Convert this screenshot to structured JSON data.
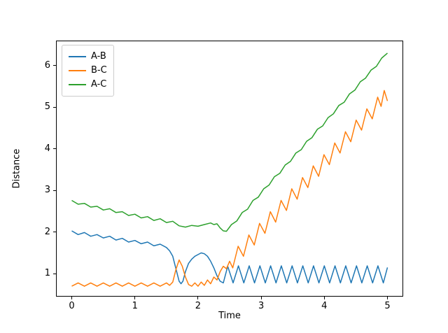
{
  "figure": {
    "background": "#ffffff"
  },
  "chart_data": {
    "type": "line",
    "title": "",
    "xlabel": "Time",
    "ylabel": "Distance",
    "xlim": [
      -0.25,
      5.25
    ],
    "ylim": [
      0.45,
      6.6
    ],
    "xticks": [
      0,
      1,
      2,
      3,
      4,
      5
    ],
    "yticks": [
      1,
      2,
      3,
      4,
      5,
      6
    ],
    "grid": false,
    "legend": {
      "position": "upper-left",
      "entries": [
        "A-B",
        "B-C",
        "A-C"
      ]
    },
    "series": [
      {
        "name": "A-B",
        "color": "#1f77b4",
        "points": [
          [
            0.0,
            2.03
          ],
          [
            0.1,
            1.94
          ],
          [
            0.2,
            1.99
          ],
          [
            0.3,
            1.9
          ],
          [
            0.4,
            1.94
          ],
          [
            0.5,
            1.86
          ],
          [
            0.6,
            1.9
          ],
          [
            0.7,
            1.81
          ],
          [
            0.8,
            1.85
          ],
          [
            0.9,
            1.76
          ],
          [
            1.0,
            1.8
          ],
          [
            1.1,
            1.72
          ],
          [
            1.2,
            1.76
          ],
          [
            1.3,
            1.67
          ],
          [
            1.4,
            1.71
          ],
          [
            1.5,
            1.63
          ],
          [
            1.55,
            1.55
          ],
          [
            1.6,
            1.42
          ],
          [
            1.65,
            1.12
          ],
          [
            1.7,
            0.82
          ],
          [
            1.73,
            0.76
          ],
          [
            1.76,
            0.82
          ],
          [
            1.8,
            1.05
          ],
          [
            1.85,
            1.25
          ],
          [
            1.9,
            1.35
          ],
          [
            1.95,
            1.42
          ],
          [
            2.0,
            1.46
          ],
          [
            2.05,
            1.5
          ],
          [
            2.1,
            1.48
          ],
          [
            2.15,
            1.42
          ],
          [
            2.2,
            1.3
          ],
          [
            2.25,
            1.14
          ],
          [
            2.3,
            0.95
          ],
          [
            2.35,
            0.82
          ],
          [
            2.4,
            0.78
          ],
          [
            2.47,
            1.18
          ],
          [
            2.555,
            0.78
          ],
          [
            2.64,
            1.19
          ],
          [
            2.725,
            0.78
          ],
          [
            2.81,
            1.19
          ],
          [
            2.895,
            0.78
          ],
          [
            2.98,
            1.19
          ],
          [
            3.065,
            0.78
          ],
          [
            3.15,
            1.19
          ],
          [
            3.235,
            0.78
          ],
          [
            3.32,
            1.19
          ],
          [
            3.405,
            0.78
          ],
          [
            3.49,
            1.19
          ],
          [
            3.575,
            0.78
          ],
          [
            3.66,
            1.19
          ],
          [
            3.745,
            0.78
          ],
          [
            3.83,
            1.19
          ],
          [
            3.915,
            0.78
          ],
          [
            4.0,
            1.19
          ],
          [
            4.085,
            0.78
          ],
          [
            4.17,
            1.19
          ],
          [
            4.255,
            0.78
          ],
          [
            4.34,
            1.19
          ],
          [
            4.425,
            0.78
          ],
          [
            4.51,
            1.19
          ],
          [
            4.595,
            0.78
          ],
          [
            4.68,
            1.19
          ],
          [
            4.765,
            0.78
          ],
          [
            4.85,
            1.19
          ],
          [
            4.935,
            0.78
          ],
          [
            5.0,
            1.15
          ]
        ]
      },
      {
        "name": "B-C",
        "color": "#ff7f0e",
        "points": [
          [
            0.0,
            0.7
          ],
          [
            0.1,
            0.78
          ],
          [
            0.2,
            0.7
          ],
          [
            0.3,
            0.78
          ],
          [
            0.4,
            0.7
          ],
          [
            0.5,
            0.78
          ],
          [
            0.6,
            0.7
          ],
          [
            0.7,
            0.78
          ],
          [
            0.8,
            0.7
          ],
          [
            0.9,
            0.78
          ],
          [
            1.0,
            0.7
          ],
          [
            1.1,
            0.78
          ],
          [
            1.2,
            0.7
          ],
          [
            1.3,
            0.78
          ],
          [
            1.4,
            0.7
          ],
          [
            1.5,
            0.78
          ],
          [
            1.55,
            0.72
          ],
          [
            1.6,
            0.8
          ],
          [
            1.65,
            1.1
          ],
          [
            1.7,
            1.33
          ],
          [
            1.75,
            1.18
          ],
          [
            1.8,
            0.92
          ],
          [
            1.85,
            0.74
          ],
          [
            1.9,
            0.7
          ],
          [
            1.95,
            0.78
          ],
          [
            2.0,
            0.7
          ],
          [
            2.05,
            0.8
          ],
          [
            2.1,
            0.72
          ],
          [
            2.15,
            0.85
          ],
          [
            2.2,
            0.76
          ],
          [
            2.25,
            0.92
          ],
          [
            2.3,
            0.85
          ],
          [
            2.35,
            1.05
          ],
          [
            2.4,
            1.18
          ],
          [
            2.45,
            1.12
          ],
          [
            2.5,
            1.3
          ],
          [
            2.55,
            1.14
          ],
          [
            2.635,
            1.66
          ],
          [
            2.72,
            1.42
          ],
          [
            2.805,
            1.93
          ],
          [
            2.89,
            1.69
          ],
          [
            2.975,
            2.21
          ],
          [
            3.06,
            1.97
          ],
          [
            3.145,
            2.49
          ],
          [
            3.23,
            2.24
          ],
          [
            3.315,
            2.76
          ],
          [
            3.4,
            2.52
          ],
          [
            3.485,
            3.04
          ],
          [
            3.57,
            2.79
          ],
          [
            3.655,
            3.31
          ],
          [
            3.74,
            3.07
          ],
          [
            3.825,
            3.59
          ],
          [
            3.91,
            3.34
          ],
          [
            3.995,
            3.86
          ],
          [
            4.08,
            3.62
          ],
          [
            4.165,
            4.14
          ],
          [
            4.25,
            3.9
          ],
          [
            4.335,
            4.41
          ],
          [
            4.42,
            4.17
          ],
          [
            4.505,
            4.69
          ],
          [
            4.59,
            4.45
          ],
          [
            4.675,
            4.96
          ],
          [
            4.76,
            4.72
          ],
          [
            4.845,
            5.24
          ],
          [
            4.9,
            5.02
          ],
          [
            4.95,
            5.4
          ],
          [
            5.0,
            5.15
          ]
        ]
      },
      {
        "name": "A-C",
        "color": "#2ca02c",
        "points": [
          [
            0.0,
            2.76
          ],
          [
            0.1,
            2.67
          ],
          [
            0.2,
            2.69
          ],
          [
            0.3,
            2.6
          ],
          [
            0.4,
            2.62
          ],
          [
            0.5,
            2.53
          ],
          [
            0.6,
            2.56
          ],
          [
            0.7,
            2.47
          ],
          [
            0.8,
            2.49
          ],
          [
            0.9,
            2.4
          ],
          [
            1.0,
            2.43
          ],
          [
            1.1,
            2.34
          ],
          [
            1.2,
            2.37
          ],
          [
            1.3,
            2.28
          ],
          [
            1.4,
            2.32
          ],
          [
            1.5,
            2.23
          ],
          [
            1.6,
            2.26
          ],
          [
            1.7,
            2.15
          ],
          [
            1.8,
            2.12
          ],
          [
            1.9,
            2.16
          ],
          [
            2.0,
            2.14
          ],
          [
            2.1,
            2.18
          ],
          [
            2.2,
            2.22
          ],
          [
            2.25,
            2.18
          ],
          [
            2.3,
            2.2
          ],
          [
            2.35,
            2.1
          ],
          [
            2.4,
            2.03
          ],
          [
            2.45,
            2.02
          ],
          [
            2.53,
            2.18
          ],
          [
            2.615,
            2.27
          ],
          [
            2.7,
            2.47
          ],
          [
            2.785,
            2.55
          ],
          [
            2.87,
            2.76
          ],
          [
            2.955,
            2.84
          ],
          [
            3.04,
            3.04
          ],
          [
            3.125,
            3.13
          ],
          [
            3.21,
            3.33
          ],
          [
            3.295,
            3.41
          ],
          [
            3.38,
            3.61
          ],
          [
            3.465,
            3.7
          ],
          [
            3.55,
            3.9
          ],
          [
            3.635,
            3.98
          ],
          [
            3.72,
            4.18
          ],
          [
            3.805,
            4.27
          ],
          [
            3.89,
            4.47
          ],
          [
            3.975,
            4.55
          ],
          [
            4.06,
            4.75
          ],
          [
            4.145,
            4.84
          ],
          [
            4.23,
            5.04
          ],
          [
            4.315,
            5.12
          ],
          [
            4.4,
            5.32
          ],
          [
            4.485,
            5.41
          ],
          [
            4.57,
            5.61
          ],
          [
            4.655,
            5.7
          ],
          [
            4.74,
            5.89
          ],
          [
            4.825,
            5.98
          ],
          [
            4.91,
            6.18
          ],
          [
            5.0,
            6.3
          ]
        ]
      }
    ]
  }
}
